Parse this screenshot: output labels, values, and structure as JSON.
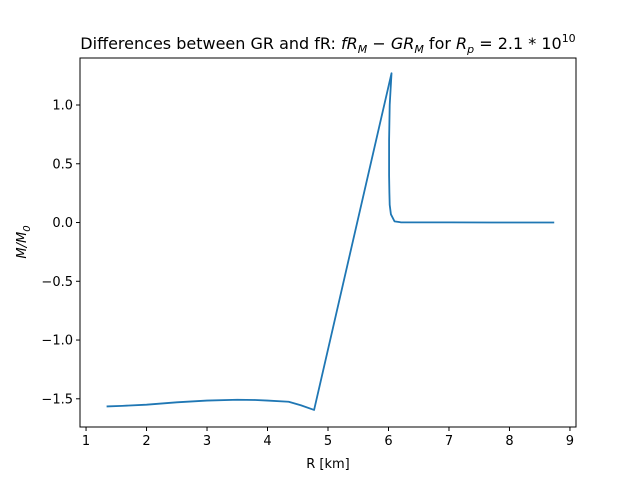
{
  "chart_data": {
    "type": "line",
    "title": {
      "prefix": "Differences between GR and fR: ",
      "expr": "fR_M - GR_M",
      "middle": " for ",
      "param": "R_p = 2.1 * 10^10"
    },
    "xlabel": "R [km]",
    "ylabel": "M/M_0",
    "xlim": [
      0.9,
      9.1
    ],
    "ylim": [
      -1.74,
      1.4
    ],
    "xticks": [
      1,
      2,
      3,
      4,
      5,
      6,
      7,
      8,
      9
    ],
    "xtick_labels": [
      "1",
      "2",
      "3",
      "4",
      "5",
      "6",
      "7",
      "8",
      "9"
    ],
    "yticks": [
      -1.5,
      -1.0,
      -0.5,
      0.0,
      0.5,
      1.0
    ],
    "ytick_labels": [
      "−1.5",
      "−1.0",
      "−0.5",
      "0.0",
      "0.5",
      "1.0"
    ],
    "grid": false,
    "color": "#1f77b4",
    "series": [
      {
        "x": [
          1.34,
          1.6,
          2.0,
          2.5,
          3.0,
          3.5,
          3.8,
          4.0,
          4.35,
          4.55,
          4.77,
          6.05,
          6.02,
          6.01,
          6.01,
          6.015,
          6.02,
          6.04,
          6.1,
          6.2,
          7.0,
          7.7,
          8.3,
          8.74
        ],
        "y": [
          -1.565,
          -1.56,
          -1.55,
          -1.53,
          -1.515,
          -1.508,
          -1.51,
          -1.515,
          -1.525,
          -1.555,
          -1.595,
          1.27,
          1.0,
          0.7,
          0.4,
          0.25,
          0.15,
          0.07,
          0.01,
          0.002,
          0.001,
          0.0,
          0.0,
          0.0
        ]
      }
    ]
  }
}
